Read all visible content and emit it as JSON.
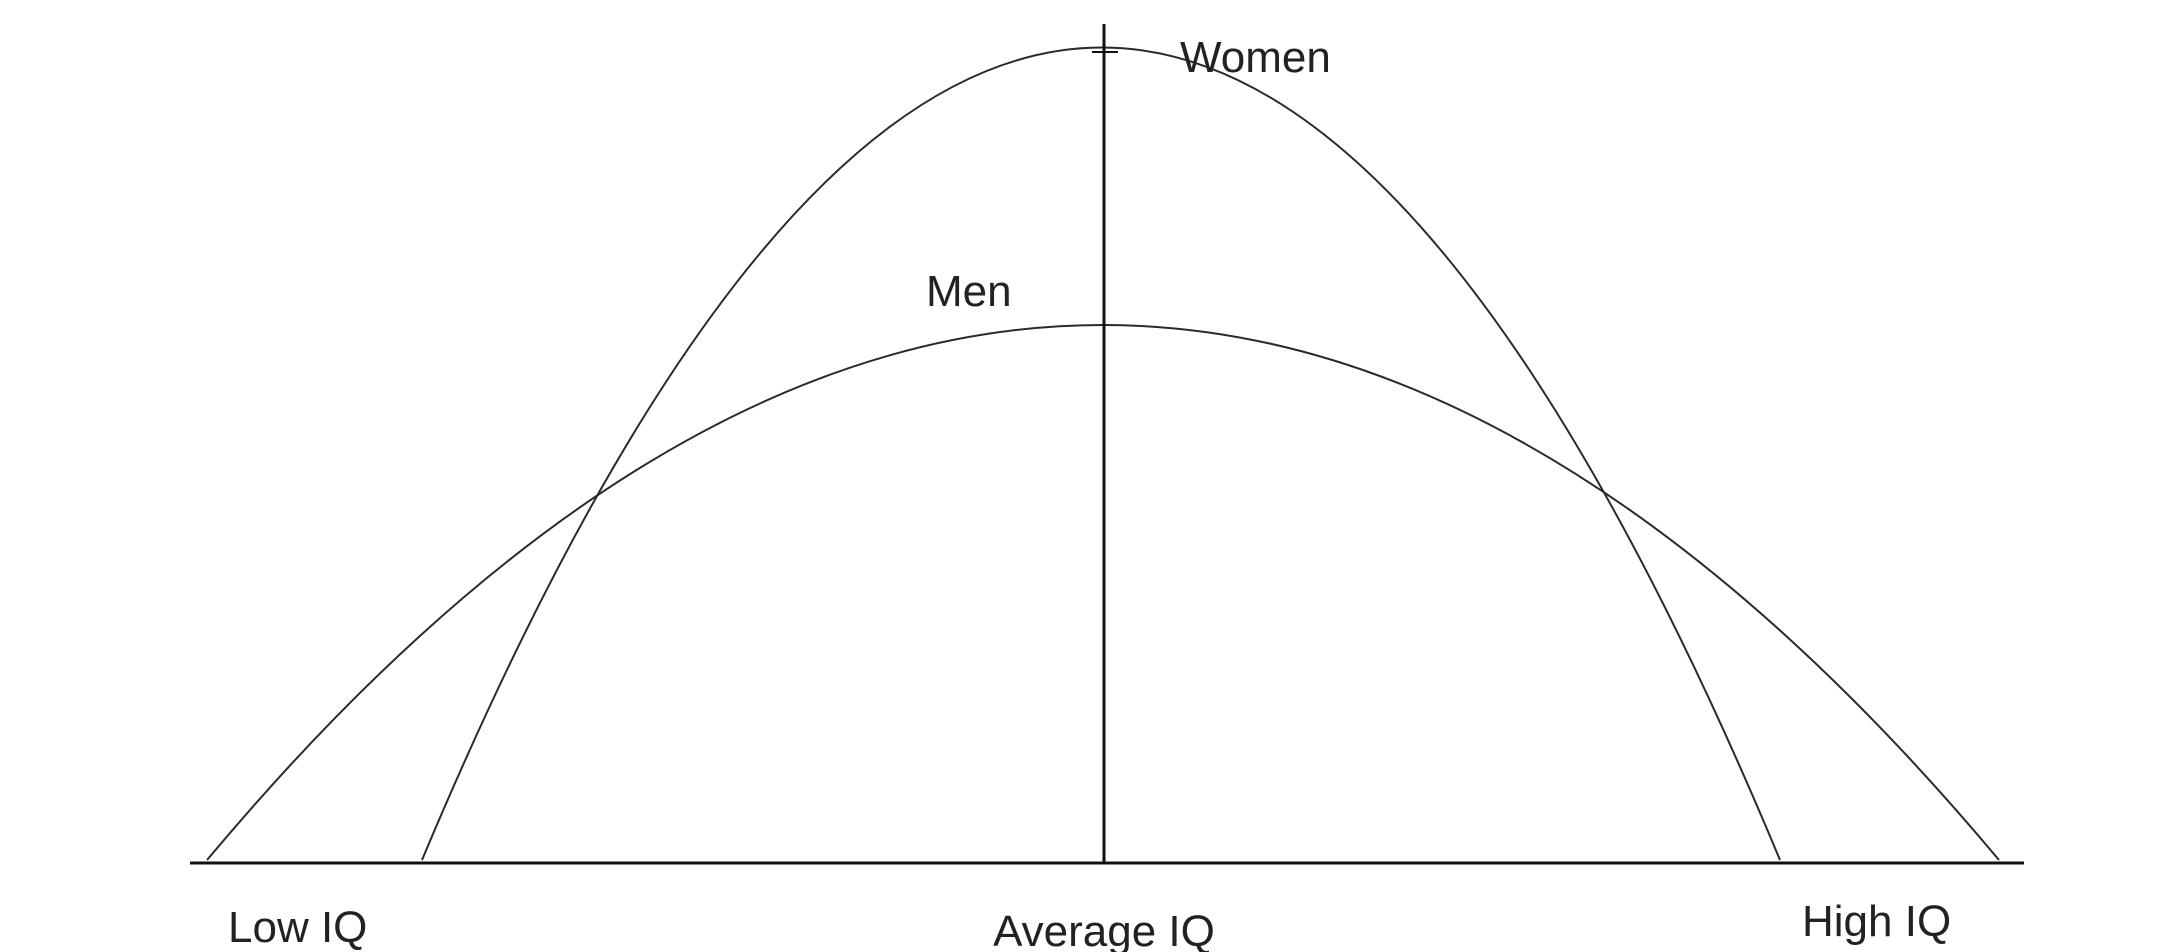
{
  "labels": {
    "women": "Women",
    "men": "Men",
    "low_iq": "Low IQ",
    "average_iq": "Average IQ",
    "high_iq": "High IQ"
  },
  "colors": {
    "background": "#ffffff",
    "line": "#2a2a2a",
    "text": "#222222"
  }
}
